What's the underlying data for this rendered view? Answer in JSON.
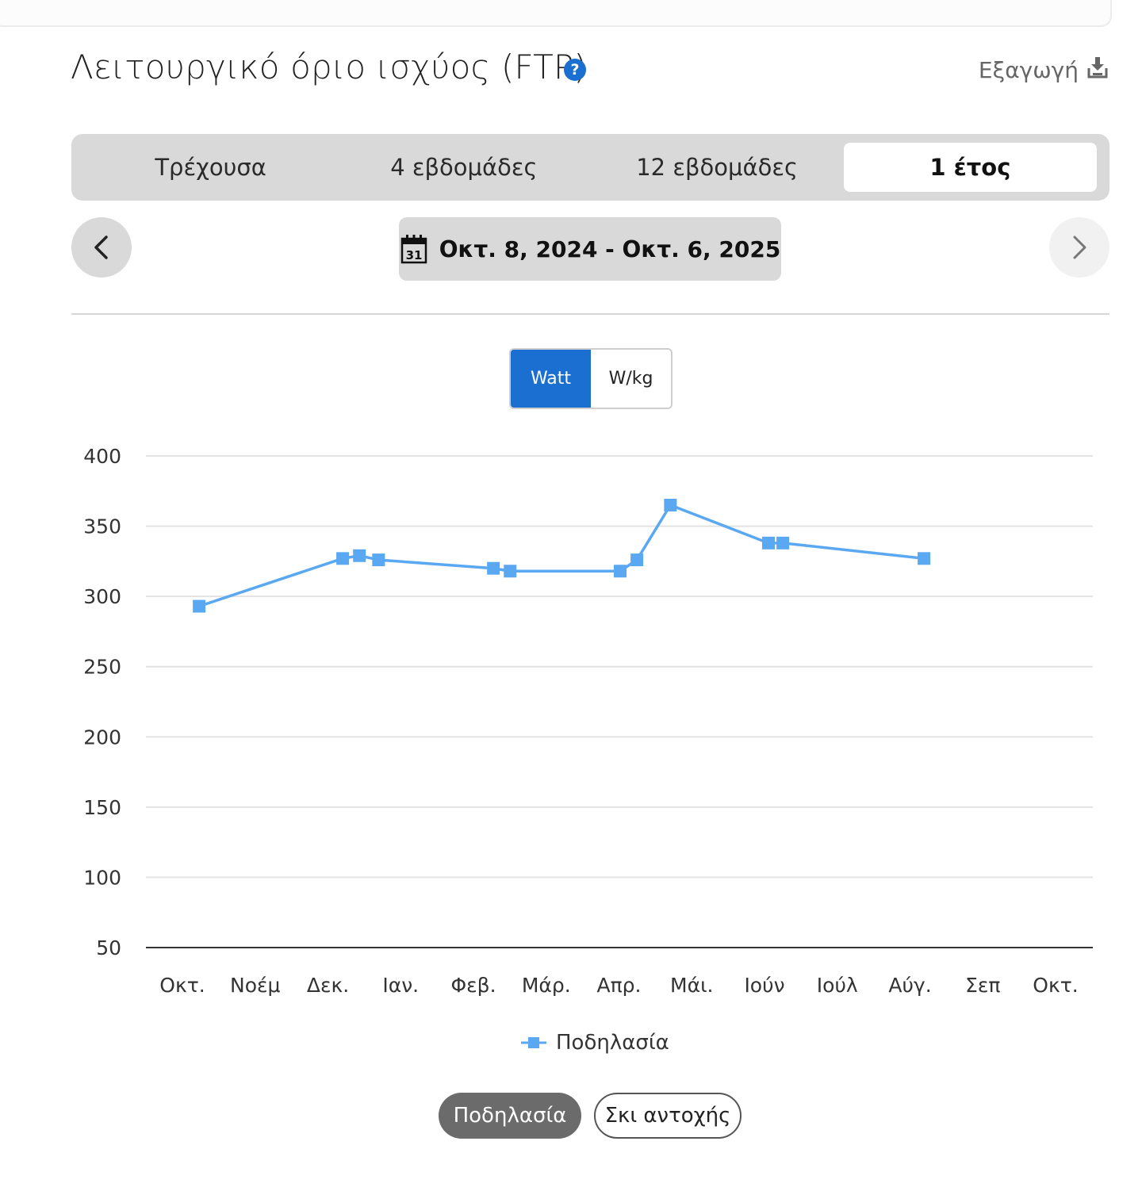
{
  "header": {
    "title": "Λειτουργικό όριο ισχύος (FTP)",
    "help_glyph": "?",
    "export_label": "Εξαγωγή"
  },
  "tabs": [
    {
      "label": "Τρέχουσα",
      "active": false
    },
    {
      "label": "4 εβδομάδες",
      "active": false
    },
    {
      "label": "12 εβδομάδες",
      "active": false
    },
    {
      "label": "1 έτος",
      "active": true
    }
  ],
  "date_nav": {
    "range_label": "Οκτ. 8, 2024 - Οκτ. 6, 2025",
    "calendar_day": "31"
  },
  "unit_toggle": {
    "options": [
      "Watt",
      "W/kg"
    ],
    "selected": "Watt"
  },
  "chart_data": {
    "type": "line",
    "title": "",
    "xlabel": "",
    "ylabel": "",
    "ylim": [
      50,
      400
    ],
    "y_ticks": [
      400,
      350,
      300,
      250,
      200,
      150,
      100,
      50
    ],
    "x_tick_labels": [
      "Οκτ.",
      "Νοέμ",
      "Δεκ.",
      "Ιαν.",
      "Φεβ.",
      "Μάρ.",
      "Απρ.",
      "Μάι.",
      "Ιούν",
      "Ιούλ",
      "Αύγ.",
      "Σεπ",
      "Οκτ."
    ],
    "x_range": [
      "2024-10-01",
      "2025-10-01"
    ],
    "grid": true,
    "legend_position": "bottom-center",
    "series": [
      {
        "name": "Ποδηλασία",
        "color": "#5aa8f2",
        "marker": "square",
        "points": [
          {
            "x": "2024-10-08",
            "y": 293
          },
          {
            "x": "2024-12-07",
            "y": 327
          },
          {
            "x": "2024-12-14",
            "y": 329
          },
          {
            "x": "2024-12-22",
            "y": 326
          },
          {
            "x": "2025-02-08",
            "y": 320
          },
          {
            "x": "2025-02-15",
            "y": 318
          },
          {
            "x": "2025-04-02",
            "y": 318
          },
          {
            "x": "2025-04-09",
            "y": 326
          },
          {
            "x": "2025-04-23",
            "y": 365
          },
          {
            "x": "2025-06-03",
            "y": 338
          },
          {
            "x": "2025-06-09",
            "y": 338
          },
          {
            "x": "2025-08-07",
            "y": 327
          }
        ]
      }
    ]
  },
  "sport_toggle": {
    "options": [
      "Ποδηλασία",
      "Σκι αντοχής"
    ],
    "selected": "Ποδηλασία"
  }
}
